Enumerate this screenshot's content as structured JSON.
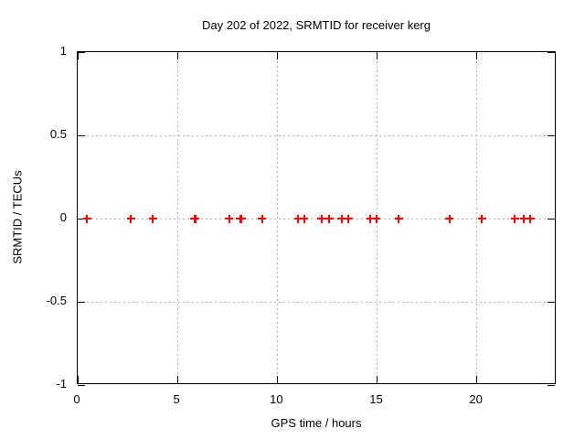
{
  "window": {
    "background": "#ffffff"
  },
  "chart_data": {
    "type": "scatter",
    "title": "Day 202 of 2022, SRMTID for receiver kerg",
    "xlabel": "GPS time / hours",
    "ylabel": "SRMTID / TECUs",
    "xlim": [
      0,
      24
    ],
    "ylim": [
      -1,
      1
    ],
    "xticks": [
      0,
      5,
      10,
      15,
      20
    ],
    "yticks": [
      -1,
      -0.5,
      0,
      0.5,
      1
    ],
    "grid": true,
    "legend_position": "none",
    "marker": "plus",
    "marker_color": "#ff0000",
    "grid_color": "#b0b0b0",
    "border_color": "#000000",
    "series": [
      {
        "name": "SRMTID",
        "x": [
          0.46,
          2.66,
          3.76,
          5.85,
          5.9,
          7.6,
          8.15,
          8.2,
          9.25,
          11.06,
          11.34,
          12.22,
          12.61,
          13.22,
          13.56,
          14.67,
          14.97,
          16.08,
          18.64,
          20.25,
          21.91,
          22.37,
          22.69
        ],
        "y": [
          0,
          0,
          0,
          0,
          0,
          0,
          0,
          0,
          0,
          0,
          0,
          0,
          0,
          0,
          0,
          0,
          0,
          0,
          0,
          0,
          0,
          0,
          0
        ]
      }
    ]
  }
}
